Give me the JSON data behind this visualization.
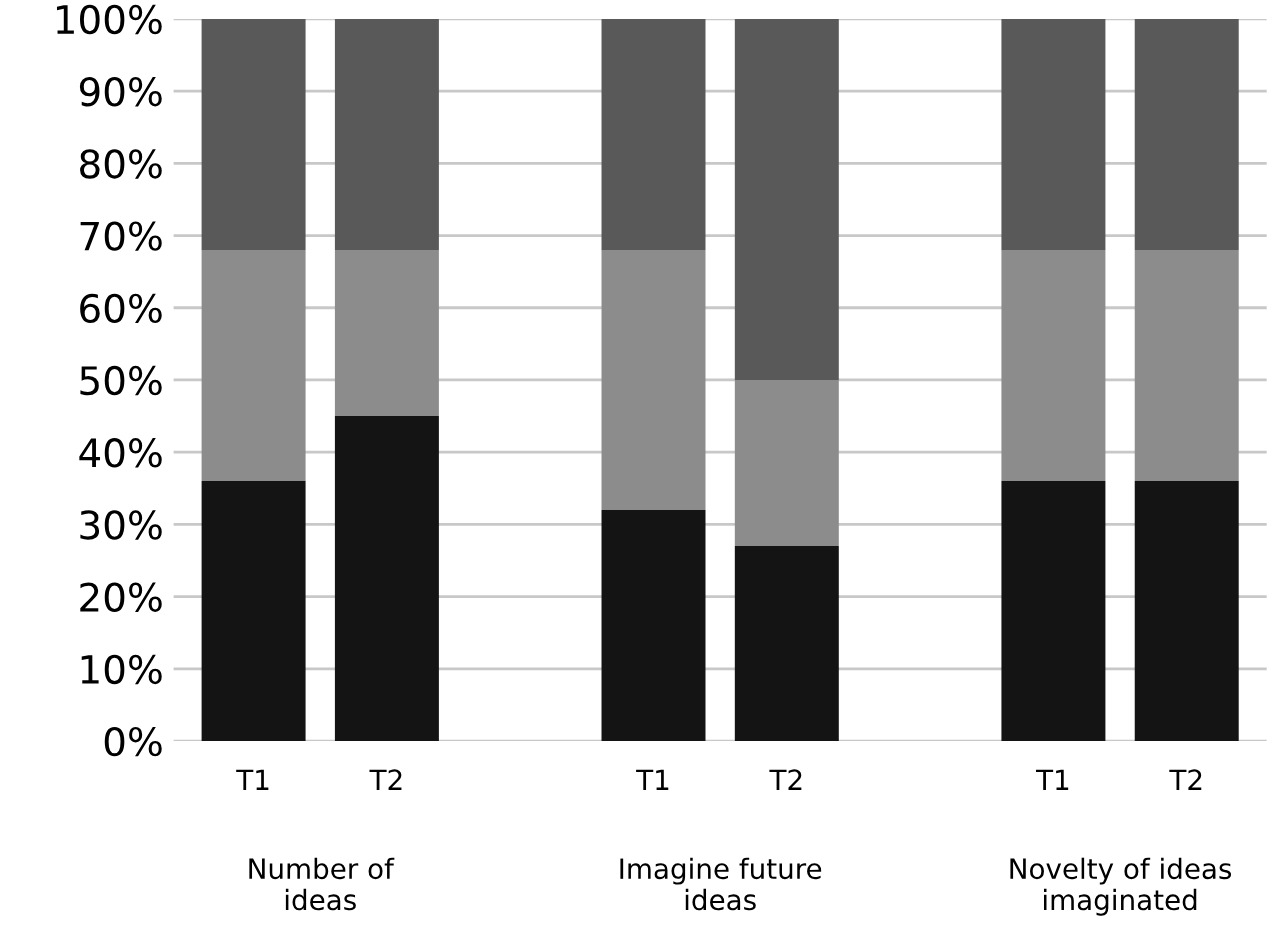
{
  "chart_data": {
    "type": "bar",
    "stacked": true,
    "categories": [
      "T1",
      "T2",
      null,
      "T1",
      "T2",
      null,
      "T1",
      "T2"
    ],
    "series": [
      {
        "color": "#141414",
        "values": [
          36,
          45,
          null,
          32,
          27,
          null,
          36,
          36
        ]
      },
      {
        "color": "#8c8c8c",
        "values": [
          32,
          23,
          null,
          36,
          23,
          null,
          32,
          32
        ]
      },
      {
        "color": "#595959",
        "values": [
          32,
          32,
          null,
          32,
          50,
          null,
          32,
          32
        ]
      }
    ],
    "ylim": [
      0,
      100
    ],
    "yticks": [
      {
        "value": 0,
        "label": "0%"
      },
      {
        "value": 10,
        "label": "10%"
      },
      {
        "value": 20,
        "label": "20%"
      },
      {
        "value": 30,
        "label": "30%"
      },
      {
        "value": 40,
        "label": "40%"
      },
      {
        "value": 50,
        "label": "50%"
      },
      {
        "value": 60,
        "label": "60%"
      },
      {
        "value": 70,
        "label": "70%"
      },
      {
        "value": 80,
        "label": "80%"
      },
      {
        "value": 90,
        "label": "90%"
      },
      {
        "value": 100,
        "label": "100%"
      }
    ],
    "grid": "y",
    "annotations": [
      "Number of\nideas",
      "Imagine future\nideas",
      "Novelty of ideas\nimaginated"
    ]
  }
}
